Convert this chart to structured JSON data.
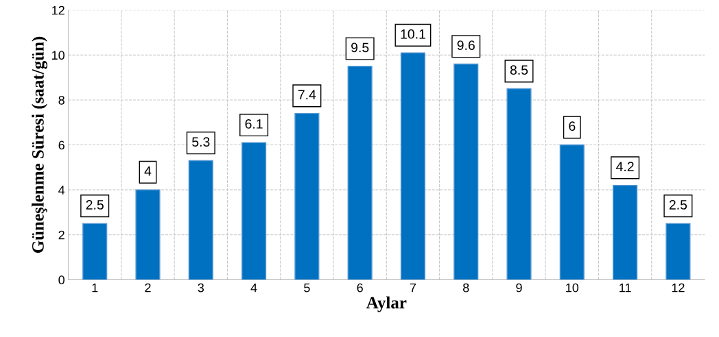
{
  "chart_data": {
    "type": "bar",
    "xlabel": "Aylar",
    "ylabel": "Güneşlenme Süresi (saat/gün)",
    "categories": [
      "1",
      "2",
      "3",
      "4",
      "5",
      "6",
      "7",
      "8",
      "9",
      "10",
      "11",
      "12"
    ],
    "values": [
      2.5,
      4,
      5.3,
      6.1,
      7.4,
      9.5,
      10.1,
      9.6,
      8.5,
      6,
      4.2,
      2.5
    ],
    "color": "#0070c0",
    "ylim": [
      0,
      12
    ],
    "yticks": [
      0,
      2,
      4,
      6,
      8,
      10,
      12
    ],
    "grid": true,
    "data_labels": true
  }
}
